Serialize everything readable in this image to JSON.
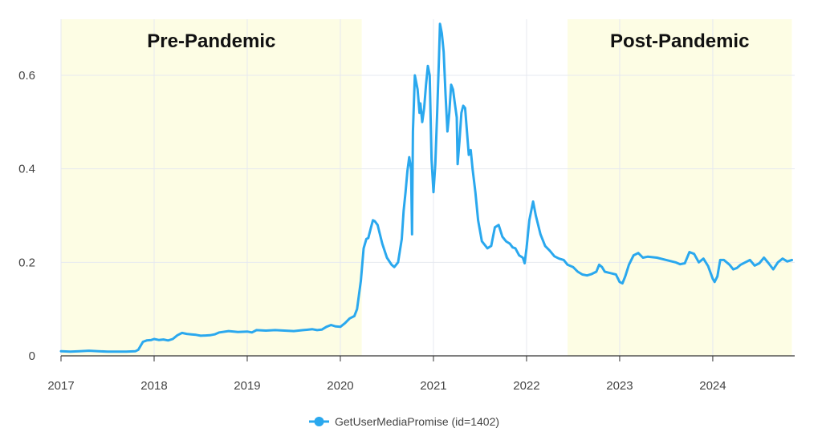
{
  "chart_data": {
    "type": "line",
    "title": "",
    "xlabel": "",
    "ylabel": "",
    "xlim": [
      2017.0,
      2024.88
    ],
    "ylim": [
      0,
      0.72
    ],
    "x_ticks": [
      "2017",
      "2018",
      "2019",
      "2020",
      "2021",
      "2022",
      "2023",
      "2024"
    ],
    "y_ticks": [
      "0",
      "0.2",
      "0.4",
      "0.6"
    ],
    "grid": true,
    "legend_position": "bottom-center",
    "bands": [
      {
        "label": "Pre-Pandemic",
        "x_start": 2017.0,
        "x_end": 2020.23
      },
      {
        "label": "Post-Pandemic",
        "x_start": 2022.44,
        "x_end": 2024.85
      }
    ],
    "series": [
      {
        "name": "GetUserMediaPromise (id=1402)",
        "color": "#2aa8ee",
        "points": [
          [
            2017.0,
            0.01
          ],
          [
            2017.1,
            0.009
          ],
          [
            2017.2,
            0.01
          ],
          [
            2017.3,
            0.011
          ],
          [
            2017.4,
            0.01
          ],
          [
            2017.5,
            0.009
          ],
          [
            2017.6,
            0.009
          ],
          [
            2017.7,
            0.009
          ],
          [
            2017.8,
            0.01
          ],
          [
            2017.83,
            0.013
          ],
          [
            2017.88,
            0.03
          ],
          [
            2017.92,
            0.033
          ],
          [
            2017.97,
            0.034
          ],
          [
            2018.0,
            0.036
          ],
          [
            2018.05,
            0.034
          ],
          [
            2018.1,
            0.035
          ],
          [
            2018.15,
            0.033
          ],
          [
            2018.2,
            0.036
          ],
          [
            2018.25,
            0.044
          ],
          [
            2018.3,
            0.049
          ],
          [
            2018.35,
            0.047
          ],
          [
            2018.4,
            0.046
          ],
          [
            2018.45,
            0.045
          ],
          [
            2018.5,
            0.043
          ],
          [
            2018.6,
            0.044
          ],
          [
            2018.65,
            0.046
          ],
          [
            2018.7,
            0.05
          ],
          [
            2018.8,
            0.053
          ],
          [
            2018.9,
            0.051
          ],
          [
            2019.0,
            0.052
          ],
          [
            2019.05,
            0.05
          ],
          [
            2019.1,
            0.055
          ],
          [
            2019.2,
            0.054
          ],
          [
            2019.3,
            0.055
          ],
          [
            2019.4,
            0.054
          ],
          [
            2019.5,
            0.053
          ],
          [
            2019.6,
            0.055
          ],
          [
            2019.7,
            0.057
          ],
          [
            2019.75,
            0.055
          ],
          [
            2019.8,
            0.056
          ],
          [
            2019.85,
            0.062
          ],
          [
            2019.9,
            0.066
          ],
          [
            2019.95,
            0.063
          ],
          [
            2020.0,
            0.062
          ],
          [
            2020.05,
            0.07
          ],
          [
            2020.1,
            0.08
          ],
          [
            2020.15,
            0.085
          ],
          [
            2020.18,
            0.1
          ],
          [
            2020.22,
            0.16
          ],
          [
            2020.25,
            0.23
          ],
          [
            2020.28,
            0.25
          ],
          [
            2020.3,
            0.252
          ],
          [
            2020.33,
            0.275
          ],
          [
            2020.35,
            0.29
          ],
          [
            2020.37,
            0.288
          ],
          [
            2020.4,
            0.28
          ],
          [
            2020.45,
            0.24
          ],
          [
            2020.5,
            0.21
          ],
          [
            2020.55,
            0.195
          ],
          [
            2020.58,
            0.19
          ],
          [
            2020.62,
            0.2
          ],
          [
            2020.66,
            0.25
          ],
          [
            2020.68,
            0.31
          ],
          [
            2020.7,
            0.35
          ],
          [
            2020.72,
            0.395
          ],
          [
            2020.74,
            0.425
          ],
          [
            2020.76,
            0.4
          ],
          [
            2020.77,
            0.26
          ],
          [
            2020.78,
            0.48
          ],
          [
            2020.8,
            0.6
          ],
          [
            2020.81,
            0.59
          ],
          [
            2020.83,
            0.57
          ],
          [
            2020.85,
            0.52
          ],
          [
            2020.86,
            0.54
          ],
          [
            2020.88,
            0.5
          ],
          [
            2020.9,
            0.53
          ],
          [
            2020.92,
            0.58
          ],
          [
            2020.94,
            0.62
          ],
          [
            2020.96,
            0.6
          ],
          [
            2020.98,
            0.42
          ],
          [
            2021.0,
            0.35
          ],
          [
            2021.02,
            0.41
          ],
          [
            2021.04,
            0.52
          ],
          [
            2021.06,
            0.64
          ],
          [
            2021.07,
            0.71
          ],
          [
            2021.09,
            0.69
          ],
          [
            2021.11,
            0.65
          ],
          [
            2021.13,
            0.56
          ],
          [
            2021.15,
            0.48
          ],
          [
            2021.17,
            0.52
          ],
          [
            2021.19,
            0.58
          ],
          [
            2021.21,
            0.57
          ],
          [
            2021.23,
            0.54
          ],
          [
            2021.25,
            0.51
          ],
          [
            2021.26,
            0.41
          ],
          [
            2021.28,
            0.46
          ],
          [
            2021.3,
            0.52
          ],
          [
            2021.32,
            0.535
          ],
          [
            2021.34,
            0.53
          ],
          [
            2021.36,
            0.48
          ],
          [
            2021.38,
            0.43
          ],
          [
            2021.4,
            0.44
          ],
          [
            2021.42,
            0.4
          ],
          [
            2021.45,
            0.35
          ],
          [
            2021.48,
            0.29
          ],
          [
            2021.52,
            0.245
          ],
          [
            2021.58,
            0.23
          ],
          [
            2021.62,
            0.235
          ],
          [
            2021.66,
            0.275
          ],
          [
            2021.7,
            0.28
          ],
          [
            2021.74,
            0.255
          ],
          [
            2021.78,
            0.245
          ],
          [
            2021.82,
            0.24
          ],
          [
            2021.85,
            0.232
          ],
          [
            2021.88,
            0.23
          ],
          [
            2021.92,
            0.215
          ],
          [
            2021.96,
            0.21
          ],
          [
            2021.98,
            0.198
          ],
          [
            2022.0,
            0.23
          ],
          [
            2022.03,
            0.29
          ],
          [
            2022.07,
            0.33
          ],
          [
            2022.1,
            0.3
          ],
          [
            2022.15,
            0.26
          ],
          [
            2022.2,
            0.235
          ],
          [
            2022.25,
            0.225
          ],
          [
            2022.3,
            0.213
          ],
          [
            2022.35,
            0.208
          ],
          [
            2022.4,
            0.205
          ],
          [
            2022.44,
            0.195
          ],
          [
            2022.5,
            0.19
          ],
          [
            2022.55,
            0.18
          ],
          [
            2022.6,
            0.174
          ],
          [
            2022.65,
            0.172
          ],
          [
            2022.7,
            0.175
          ],
          [
            2022.75,
            0.18
          ],
          [
            2022.78,
            0.195
          ],
          [
            2022.81,
            0.19
          ],
          [
            2022.84,
            0.18
          ],
          [
            2022.88,
            0.178
          ],
          [
            2022.92,
            0.176
          ],
          [
            2022.96,
            0.174
          ],
          [
            2023.0,
            0.158
          ],
          [
            2023.03,
            0.155
          ],
          [
            2023.06,
            0.17
          ],
          [
            2023.1,
            0.195
          ],
          [
            2023.15,
            0.215
          ],
          [
            2023.2,
            0.22
          ],
          [
            2023.25,
            0.21
          ],
          [
            2023.3,
            0.212
          ],
          [
            2023.4,
            0.21
          ],
          [
            2023.5,
            0.205
          ],
          [
            2023.6,
            0.2
          ],
          [
            2023.65,
            0.196
          ],
          [
            2023.7,
            0.198
          ],
          [
            2023.75,
            0.222
          ],
          [
            2023.8,
            0.218
          ],
          [
            2023.85,
            0.2
          ],
          [
            2023.9,
            0.208
          ],
          [
            2023.95,
            0.192
          ],
          [
            2024.0,
            0.165
          ],
          [
            2024.02,
            0.158
          ],
          [
            2024.05,
            0.17
          ],
          [
            2024.08,
            0.205
          ],
          [
            2024.12,
            0.205
          ],
          [
            2024.18,
            0.195
          ],
          [
            2024.22,
            0.185
          ],
          [
            2024.26,
            0.188
          ],
          [
            2024.3,
            0.195
          ],
          [
            2024.35,
            0.2
          ],
          [
            2024.4,
            0.205
          ],
          [
            2024.45,
            0.193
          ],
          [
            2024.5,
            0.198
          ],
          [
            2024.55,
            0.21
          ],
          [
            2024.6,
            0.198
          ],
          [
            2024.65,
            0.185
          ],
          [
            2024.7,
            0.2
          ],
          [
            2024.75,
            0.208
          ],
          [
            2024.8,
            0.202
          ],
          [
            2024.85,
            0.205
          ]
        ]
      }
    ]
  }
}
